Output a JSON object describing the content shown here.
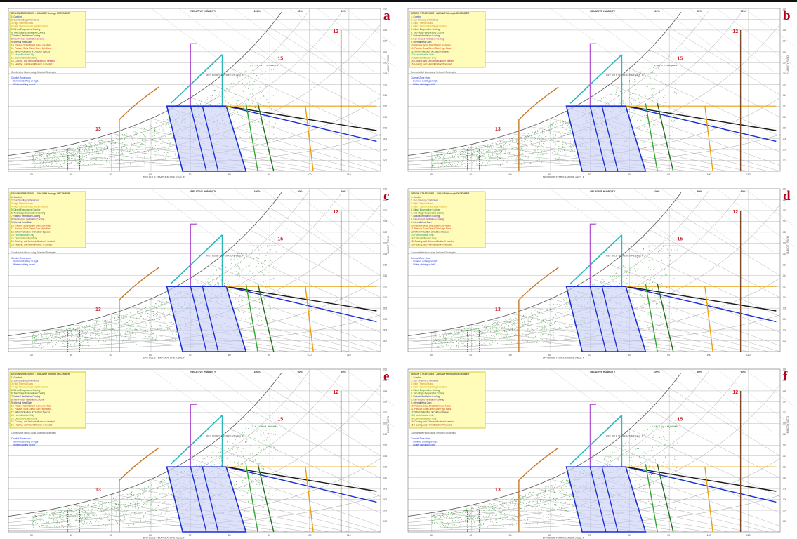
{
  "figure": {
    "panel_labels": [
      "a",
      "b",
      "c",
      "d",
      "e",
      "f"
    ],
    "header_text": "RELATIVE HUMIDITY",
    "rh_top_labels": [
      "100%",
      "80%",
      "60%"
    ],
    "x_axis_label": "DRY BULB TEMPERATURE (deg), F",
    "y_axis_label": "HUMIDITY RATIO",
    "wet_bulb_label": "WET BULB TEMPERATURE (deg), F",
    "x_ticks": [
      "30",
      "40",
      "50",
      "60",
      "70",
      "80",
      "90",
      "100",
      "110"
    ],
    "y_ticks": [
      ".030",
      ".028",
      ".026",
      ".024",
      ".022",
      ".020",
      ".018",
      ".016",
      ".014",
      ".012",
      ".010",
      ".008",
      ".006",
      ".004",
      ".002"
    ],
    "zone_numbers": [
      "12",
      "13",
      "15"
    ],
    "legend_title": "DESIGN STRATEGIES - JANUARY through DECEMBER",
    "legend_items": [
      "1. Comfort",
      "2. Sun Shading of Windows",
      "3. High Thermal Mass",
      "4. High Thermal Mass Night Flushed",
      "5. Direct Evaporative Cooling",
      "6. Two-Stage Evaporative Cooling",
      "7. Natural Ventilation Cooling",
      "8. Fan-Forced Ventilation Cooling",
      "9. Internal Heat Gain",
      "10. Passive Solar Direct Gain Low Mass",
      "11. Passive Solar Direct Gain High Mass",
      "12. Wind Protection of Outdoor Spaces",
      "13. Humidification Only",
      "14. Dehumidification Only",
      "15. Cooling, add Dehumidification if needed",
      "16. Heating, add Humidification if needed"
    ],
    "legend_footer": "Comfortable Hours using Selected Strategies",
    "comfort_zone_notes": [
      "Comfort Zone show",
      "Summer clothing on right",
      "Winter clothing on left"
    ],
    "colors": {
      "comfort_zone": "#1a2fd6",
      "comfort_fill": "#c8cdf6",
      "evaporative": "#2fa82f",
      "evaporative_dark": "#1f6e1f",
      "ventilation": "#e8a10e",
      "heating": "#c87a2a",
      "cooling": "#7a4a2a",
      "purple": "#b04fd0",
      "teal": "#2ab8b8",
      "dehumid": "#1a1a1a",
      "grid": "#9a9a9a",
      "points": "#2a8a2a",
      "label_red": "#b3001b"
    }
  },
  "chart_data": [
    {
      "type": "scatter",
      "panel": "a",
      "x_label": "DRY BULB TEMPERATURE (deg), F",
      "y_label": "HUMIDITY RATIO",
      "xlim": [
        24,
        118
      ],
      "ylim": [
        0,
        0.03
      ],
      "series": [
        {
          "name": "hourly weather data"
        }
      ]
    },
    {
      "type": "scatter",
      "panel": "b",
      "x_label": "DRY BULB TEMPERATURE (deg), F",
      "y_label": "HUMIDITY RATIO",
      "xlim": [
        24,
        118
      ],
      "ylim": [
        0,
        0.03
      ],
      "series": [
        {
          "name": "hourly weather data"
        }
      ]
    },
    {
      "type": "scatter",
      "panel": "c",
      "x_label": "DRY BULB TEMPERATURE (deg), F",
      "y_label": "HUMIDITY RATIO",
      "xlim": [
        24,
        118
      ],
      "ylim": [
        0,
        0.03
      ],
      "series": [
        {
          "name": "hourly weather data"
        }
      ]
    },
    {
      "type": "scatter",
      "panel": "d",
      "x_label": "DRY BULB TEMPERATURE (deg), F",
      "y_label": "HUMIDITY RATIO",
      "xlim": [
        24,
        118
      ],
      "ylim": [
        0,
        0.03
      ],
      "series": [
        {
          "name": "hourly weather data"
        }
      ]
    },
    {
      "type": "scatter",
      "panel": "e",
      "x_label": "DRY BULB TEMPERATURE (deg), F",
      "y_label": "HUMIDITY RATIO",
      "xlim": [
        24,
        118
      ],
      "ylim": [
        0,
        0.03
      ],
      "series": [
        {
          "name": "hourly weather data"
        }
      ]
    },
    {
      "type": "scatter",
      "panel": "f",
      "x_label": "DRY BULB TEMPERATURE (deg), F",
      "y_label": "HUMIDITY RATIO",
      "xlim": [
        24,
        118
      ],
      "ylim": [
        0,
        0.03
      ],
      "series": [
        {
          "name": "hourly weather data"
        }
      ]
    }
  ]
}
